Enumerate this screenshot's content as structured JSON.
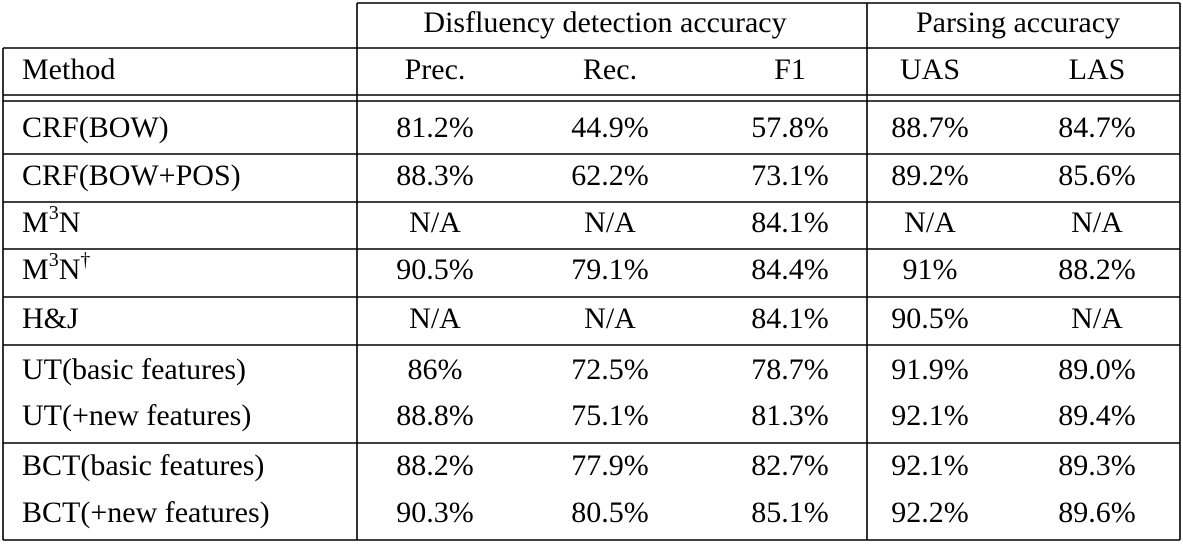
{
  "table": {
    "group_headers": [
      "Disfluency detection accuracy",
      "Parsing accuracy"
    ],
    "columns": [
      "Method",
      "Prec.",
      "Rec.",
      "F1",
      "UAS",
      "LAS"
    ],
    "rows": [
      {
        "method": [
          {
            "text": "CRF(BOW)"
          }
        ],
        "cells": [
          "81.2%",
          "44.9%",
          "57.8%",
          "88.7%",
          "84.7%"
        ]
      },
      {
        "method": [
          {
            "text": "CRF(BOW+POS)"
          }
        ],
        "cells": [
          "88.3%",
          "62.2%",
          "73.1%",
          "89.2%",
          "85.6%"
        ]
      },
      {
        "method": [
          {
            "text": "M"
          },
          {
            "text": "3",
            "sup": true
          },
          {
            "text": "N"
          }
        ],
        "cells": [
          "N/A",
          "N/A",
          "84.1%",
          "N/A",
          "N/A"
        ]
      },
      {
        "method": [
          {
            "text": "M"
          },
          {
            "text": "3",
            "sup": true
          },
          {
            "text": "N"
          },
          {
            "text": "†",
            "sup": true
          }
        ],
        "cells": [
          "90.5%",
          "79.1%",
          "84.4%",
          "91%",
          "88.2%"
        ]
      },
      {
        "method": [
          {
            "text": "H&J"
          }
        ],
        "cells": [
          "N/A",
          "N/A",
          "84.1%",
          "90.5%",
          "N/A"
        ]
      },
      {
        "method": [
          {
            "text": "UT(basic features)"
          }
        ],
        "cells": [
          "86%",
          "72.5%",
          "78.7%",
          "91.9%",
          "89.0%"
        ]
      },
      {
        "method": [
          {
            "text": "UT(+new features)"
          }
        ],
        "cells": [
          "88.8%",
          "75.1%",
          "81.3%",
          "92.1%",
          "89.4%"
        ]
      },
      {
        "method": [
          {
            "text": "BCT(basic features)"
          }
        ],
        "cells": [
          "88.2%",
          "77.9%",
          "82.7%",
          "92.1%",
          "89.3%"
        ]
      },
      {
        "method": [
          {
            "text": "BCT(+new features)"
          }
        ],
        "cells": [
          "90.3%",
          "80.5%",
          "85.1%",
          "92.2%",
          "89.6%"
        ]
      }
    ]
  }
}
